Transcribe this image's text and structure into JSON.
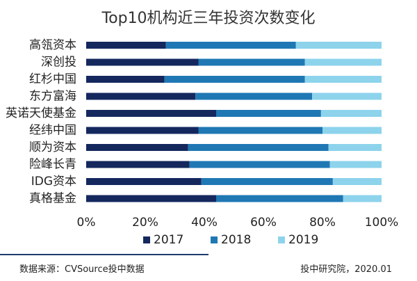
{
  "chart_data": {
    "type": "bar",
    "orientation": "horizontal",
    "stacked": "percent",
    "title": "Top10机构近三年投资次数变化",
    "categories": [
      "高瓴资本",
      "深创投",
      "红杉中国",
      "东方富海",
      "英诺天使基金",
      "经纬中国",
      "顺为资本",
      "险峰长青",
      "IDG资本",
      "真格基金"
    ],
    "series": [
      {
        "name": "2017",
        "color": "#14285e",
        "values": [
          27,
          38,
          26.5,
          37,
          44,
          38,
          34.5,
          35,
          39,
          44
        ]
      },
      {
        "name": "2018",
        "color": "#1f78b4",
        "values": [
          44,
          36,
          47.5,
          39.5,
          35.5,
          42,
          47.5,
          47.5,
          44.5,
          43
        ]
      },
      {
        "name": "2019",
        "color": "#8dd3ec",
        "values": [
          29,
          26,
          26,
          23.5,
          20.5,
          20,
          18,
          17.5,
          16.5,
          13
        ]
      }
    ],
    "xlim": [
      0,
      100
    ],
    "xticks": [
      "0%",
      "20%",
      "40%",
      "60%",
      "80%",
      "100%"
    ],
    "legend": "bottom",
    "grid": false
  },
  "footer": {
    "source": "数据来源：CVSource投中数据",
    "credit": "投中研究院，2020.01"
  }
}
